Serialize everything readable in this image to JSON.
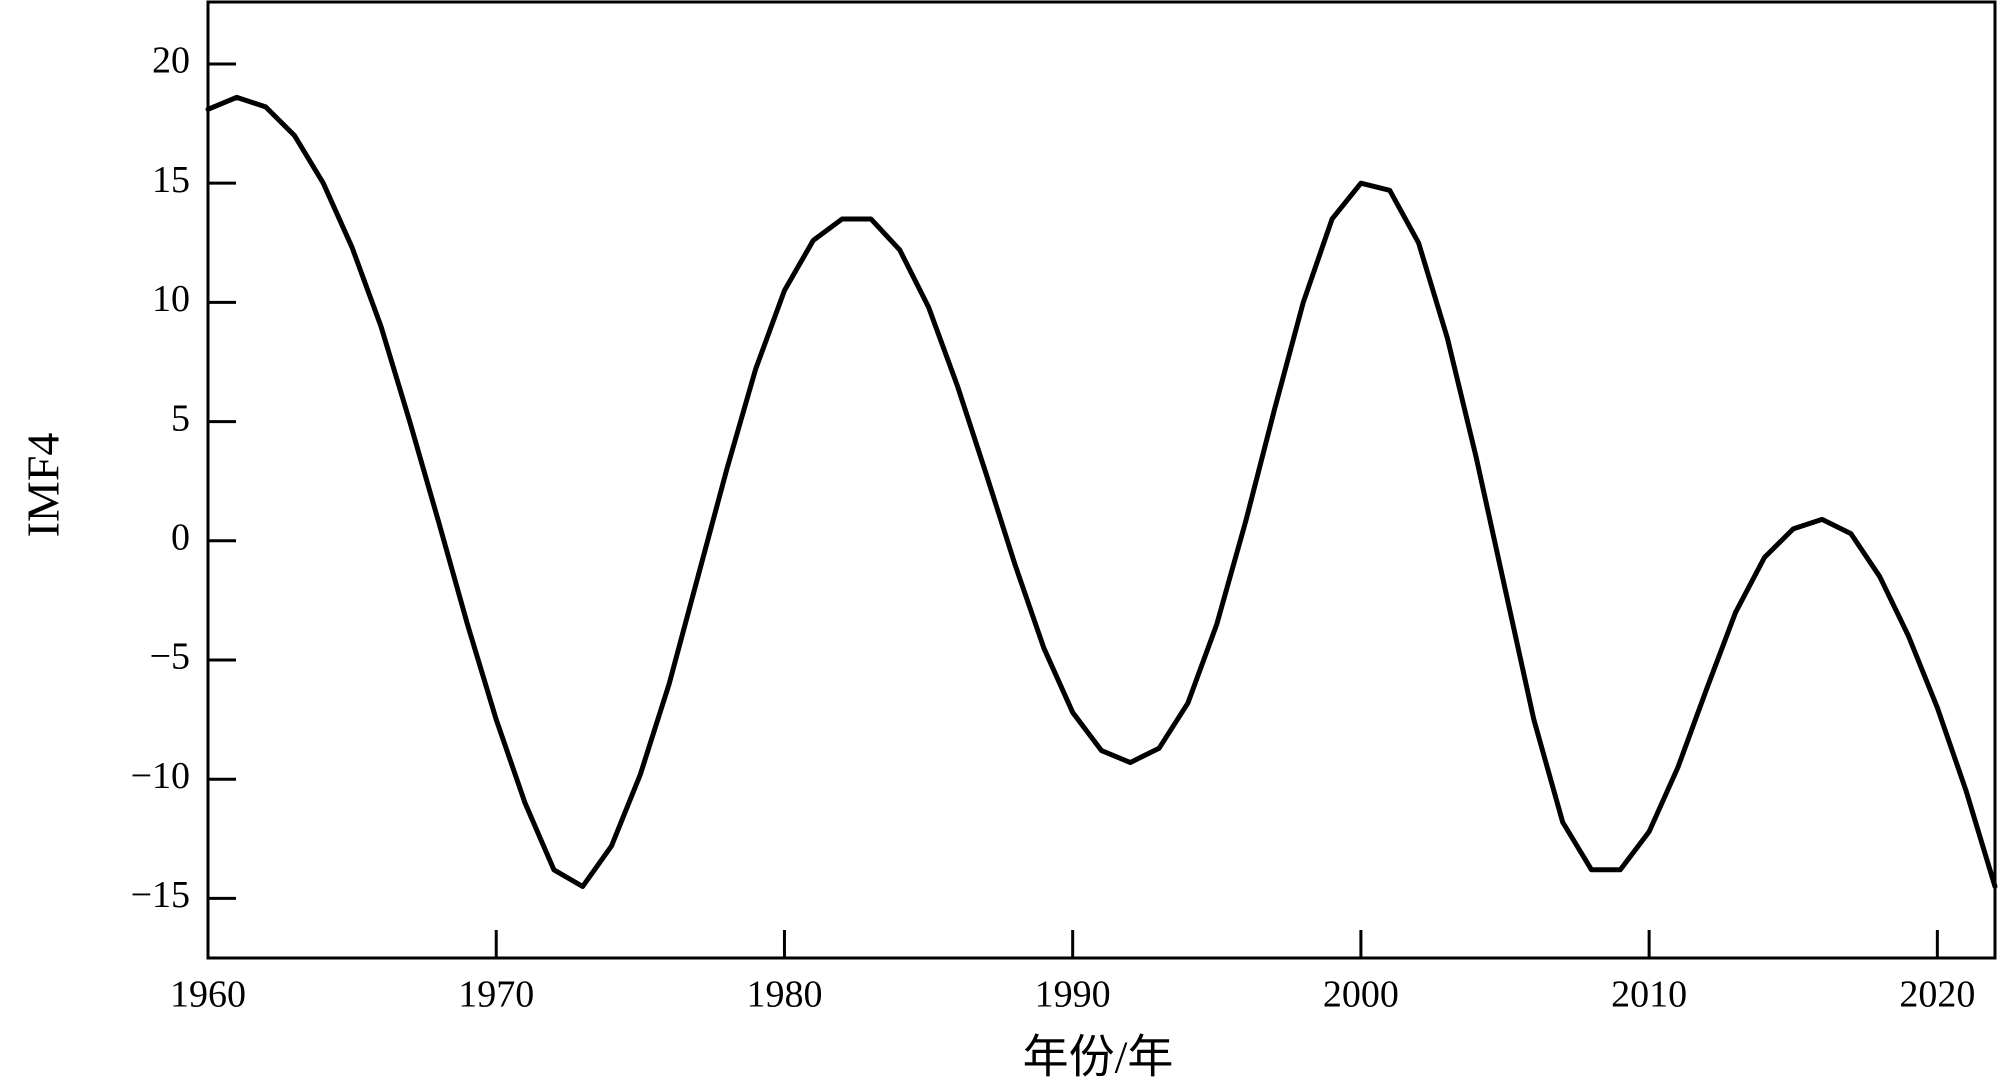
{
  "chart_data": {
    "type": "line",
    "x_label": "年份/年",
    "y_label": "IMF4",
    "xlim": [
      1960,
      2022
    ],
    "ylim": [
      -17.5,
      22.6
    ],
    "xticks": [
      1960,
      1970,
      1980,
      1990,
      2000,
      2010,
      2020
    ],
    "yticks": [
      {
        "value": -15,
        "label": "−15"
      },
      {
        "value": -10,
        "label": "−10"
      },
      {
        "value": -5,
        "label": "−5"
      },
      0,
      5,
      10,
      15,
      20
    ],
    "grid": false,
    "series": [
      {
        "color": "#000000",
        "x": [
          1960,
          1961,
          1962,
          1963,
          1964,
          1965,
          1966,
          1967,
          1968,
          1969,
          1970,
          1971,
          1972,
          1973,
          1974,
          1975,
          1976,
          1977,
          1978,
          1979,
          1980,
          1981,
          1982,
          1983,
          1984,
          1985,
          1986,
          1987,
          1988,
          1989,
          1990,
          1991,
          1992,
          1993,
          1994,
          1995,
          1996,
          1997,
          1998,
          1999,
          2000,
          2001,
          2002,
          2003,
          2004,
          2005,
          2006,
          2007,
          2008,
          2009,
          2010,
          2011,
          2012,
          2013,
          2014,
          2015,
          2016,
          2017,
          2018,
          2019,
          2020,
          2021,
          2022
        ],
        "values": [
          18.1,
          18.6,
          18.2,
          17.0,
          15.0,
          12.3,
          9.0,
          5.0,
          0.8,
          -3.5,
          -7.5,
          -11.0,
          -13.8,
          -14.5,
          -12.8,
          -9.8,
          -6.0,
          -1.5,
          3.0,
          7.2,
          10.5,
          12.6,
          13.5,
          13.5,
          12.2,
          9.8,
          6.5,
          2.8,
          -1.0,
          -4.5,
          -7.2,
          -8.8,
          -9.3,
          -8.7,
          -6.8,
          -3.5,
          0.8,
          5.5,
          10.0,
          13.5,
          15.0,
          14.7,
          12.5,
          8.5,
          3.5,
          -2.0,
          -7.5,
          -11.8,
          -13.8,
          -13.8,
          -12.2,
          -9.5,
          -6.2,
          -3.0,
          -0.7,
          0.5,
          0.9,
          0.3,
          -1.5,
          -4.0,
          -7.0,
          -10.5,
          -14.5
        ]
      }
    ]
  }
}
